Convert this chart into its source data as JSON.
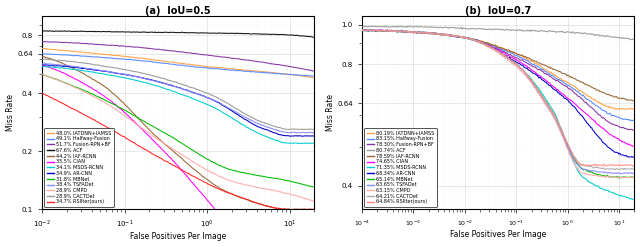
{
  "subplot_a": {
    "title": "(a)  IoU=0.5",
    "xlabel": "False Positives Per Image",
    "ylabel": "Miss Rate",
    "xlim": [
      0.01,
      20
    ],
    "ylim": [
      0.1,
      1.0
    ],
    "yticks": [
      0.1,
      0.2,
      0.4,
      0.64,
      0.8
    ],
    "legend_entries": [
      {
        "label": "48.0% IATDNN+IAMSS",
        "color": "#FFA040"
      },
      {
        "label": "49.1% Halfway-Fusion",
        "color": "#5588FF"
      },
      {
        "label": "51.7% Fusion-RPN+BF",
        "color": "#8833AA"
      },
      {
        "label": "67.6% ACF",
        "color": "#111111"
      },
      {
        "label": "44.2% IAF-RCNN",
        "color": "#996633"
      },
      {
        "label": "35.5% CIAN",
        "color": "#FF00FF"
      },
      {
        "label": "34.1% MSDS-RCNN",
        "color": "#00CCCC"
      },
      {
        "label": "34.9% AR-CNN",
        "color": "#0000CC"
      },
      {
        "label": "31.8% MBNet",
        "color": "#00BB00"
      },
      {
        "label": "38.4% TSFADet",
        "color": "#8888FF"
      },
      {
        "label": "28.9% CMPD",
        "color": "#FFAAAA"
      },
      {
        "label": "28.9% CACTDet",
        "color": "#999999"
      },
      {
        "label": "34.7% RSIlter(ours)",
        "color": "#FF2222"
      }
    ]
  },
  "subplot_b": {
    "title": "(b)  IoU=0.7",
    "xlabel": "False Positives Per Image",
    "ylabel": "Miss Rate",
    "xlim": [
      0.0001,
      20
    ],
    "ylim": [
      0.35,
      1.05
    ],
    "yticks": [
      0.4,
      0.64,
      0.8,
      1.0
    ],
    "legend_entries": [
      {
        "label": "80.19% IATDNN+IAMSS",
        "color": "#FFA040"
      },
      {
        "label": "83.15% Halfway-Fusion",
        "color": "#5588FF"
      },
      {
        "label": "78.30% Fusion-RPN+BF",
        "color": "#8833AA"
      },
      {
        "label": "80.74% ACF",
        "color": "#999999"
      },
      {
        "label": "78.59% IAF-RCNN",
        "color": "#996633"
      },
      {
        "label": "74.65% CIAN",
        "color": "#FF00FF"
      },
      {
        "label": "71.35% MSDS-RCNN",
        "color": "#00CCCC"
      },
      {
        "label": "68.34% AR-CNN",
        "color": "#0000CC"
      },
      {
        "label": "65.14% MBNet",
        "color": "#00BB00"
      },
      {
        "label": "63.65% TSFADet",
        "color": "#8888FF"
      },
      {
        "label": "63.15% CMPD",
        "color": "#FFAAAA"
      },
      {
        "label": "64.21% CACTDet",
        "color": "#AAAAAA"
      },
      {
        "label": "64.84% RSIlter(ours)",
        "color": "#FF8888"
      }
    ]
  }
}
